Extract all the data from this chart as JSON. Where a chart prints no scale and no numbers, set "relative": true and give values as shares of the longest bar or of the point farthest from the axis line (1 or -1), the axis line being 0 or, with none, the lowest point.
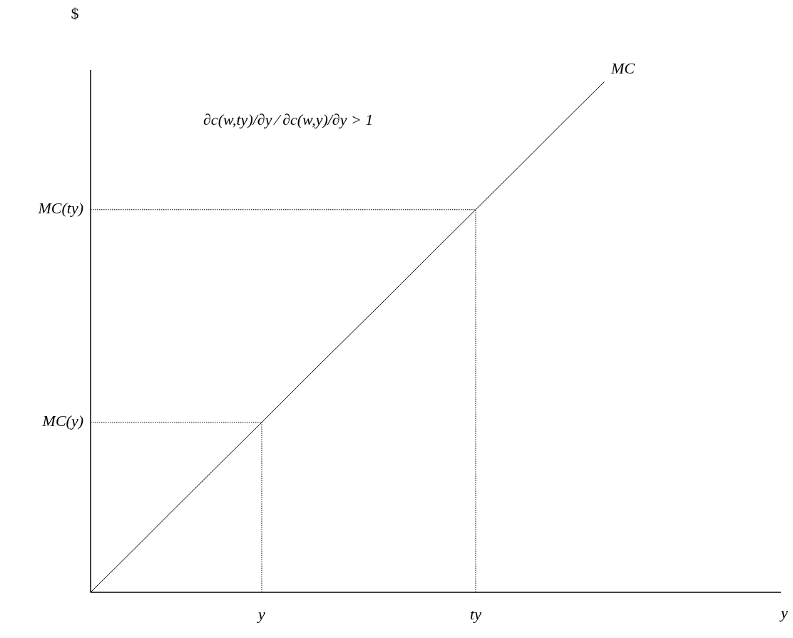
{
  "chart_data": {
    "type": "line",
    "relative": true,
    "xlabel": "y",
    "ylabel": "$",
    "categories": [
      null,
      null,
      null,
      null,
      "y",
      null,
      null,
      null,
      null,
      "ty",
      null,
      null,
      null,
      null,
      null,
      null,
      null
    ],
    "annotations": [
      "∂c(w,ty)/∂y ⁄ ∂c(w,y)/∂y > 1"
    ],
    "ref_lines": [
      {
        "axis": "y",
        "value": 0.333,
        "label": "MC(y)",
        "line_style": "dotted",
        "color": "#000000"
      },
      {
        "axis": "y",
        "value": 0.75,
        "label": "MC(ty)",
        "line_style": "dotted",
        "color": "#000000"
      },
      {
        "axis": "x",
        "value": "y",
        "line_style": "dotted",
        "color": "#000000"
      },
      {
        "axis": "x",
        "value": "ty",
        "line_style": "dotted",
        "color": "#000000"
      }
    ],
    "series": [
      {
        "name": "MC",
        "color": "#000000",
        "values": [
          0,
          0.083,
          0.167,
          0.25,
          0.333,
          0.417,
          0.5,
          0.583,
          0.667,
          0.75,
          0.833,
          0.917,
          1,
          null,
          null,
          null,
          null
        ],
        "line_style": "solid"
      }
    ]
  }
}
